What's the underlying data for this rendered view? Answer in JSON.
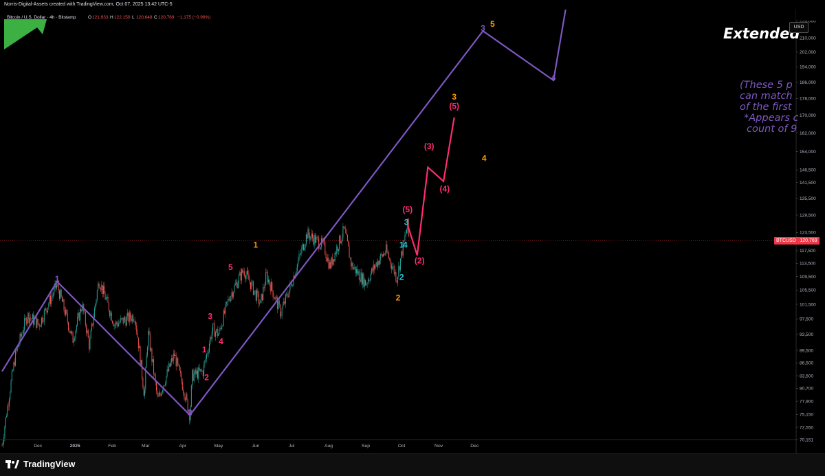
{
  "header": {
    "creator": "Norris-Digital-Assets created with TradingView.com, Oct 07, 2025 13:42 UTC-5",
    "symbol": "Bitcoin / U.S. Dollar · 4h · Bitstamp",
    "ohlc": {
      "o_label": "O",
      "o": "121,933",
      "h_label": "H",
      "h": "122,150",
      "l_label": "L",
      "l": "120,648",
      "c_label": "C",
      "c": "120,769",
      "change": "−1,175 (−0.96%)"
    }
  },
  "toolbar": {
    "currency_button": "USD"
  },
  "price_tag": {
    "symbol": "BTCUSD",
    "value": "120,769"
  },
  "annotation": {
    "title": "Extended",
    "note_lines": [
      "(These 5 p",
      "can match",
      "of the first",
      "*Appears c",
      "count of 9"
    ]
  },
  "footer": {
    "brand": "TradingView"
  },
  "colors": {
    "background": "#000000",
    "purple": "#7e57c2",
    "pink": "#ff2d6f",
    "orange": "#ff9800",
    "cyan": "#26c6da",
    "candle_up": "#26a69a",
    "candle_down": "#ef5350",
    "green_corner": "#3cb043"
  },
  "chart_data": {
    "type": "candlestick",
    "y_scale": "log",
    "ylim": [
      70151,
      226000
    ],
    "y_ticks": [
      "220,000",
      "210,000",
      "202,000",
      "194,000",
      "186,000",
      "178,000",
      "170,000",
      "162,000",
      "154,000",
      "146,500",
      "141,500",
      "135,500",
      "129,500",
      "123,500",
      "117,500",
      "113,500",
      "109,500",
      "105,500",
      "101,500",
      "97,500",
      "93,500",
      "89,500",
      "86,500",
      "83,500",
      "80,700",
      "77,900",
      "75,150",
      "72,550",
      "70,151"
    ],
    "x_ticks": [
      "Dec",
      "2025",
      "Feb",
      "Mar",
      "Apr",
      "May",
      "Jun",
      "Jul",
      "Aug",
      "Sep",
      "Oct",
      "Nov",
      "Dec"
    ],
    "current_price": 120769,
    "price_path": [
      {
        "date": "2024-11-01",
        "price": 69000
      },
      {
        "date": "2024-11-12",
        "price": 88000
      },
      {
        "date": "2024-11-22",
        "price": 98500
      },
      {
        "date": "2024-12-02",
        "price": 96000
      },
      {
        "date": "2024-12-17",
        "price": 107000
      },
      {
        "date": "2024-12-30",
        "price": 92000
      },
      {
        "date": "2025-01-07",
        "price": 101500
      },
      {
        "date": "2025-01-13",
        "price": 90500
      },
      {
        "date": "2025-01-21",
        "price": 108500
      },
      {
        "date": "2025-02-03",
        "price": 96000
      },
      {
        "date": "2025-02-20",
        "price": 98500
      },
      {
        "date": "2025-02-28",
        "price": 79000
      },
      {
        "date": "2025-03-03",
        "price": 94000
      },
      {
        "date": "2025-03-11",
        "price": 78000
      },
      {
        "date": "2025-03-25",
        "price": 88500
      },
      {
        "date": "2025-04-07",
        "price": 75000
      },
      {
        "date": "2025-04-09",
        "price": 83500
      },
      {
        "date": "2025-04-18",
        "price": 84500
      },
      {
        "date": "2025-04-26",
        "price": 95000
      },
      {
        "date": "2025-05-01",
        "price": 93500
      },
      {
        "date": "2025-05-10",
        "price": 103500
      },
      {
        "date": "2025-05-22",
        "price": 111500
      },
      {
        "date": "2025-06-05",
        "price": 101500
      },
      {
        "date": "2025-06-10",
        "price": 110000
      },
      {
        "date": "2025-06-22",
        "price": 99000
      },
      {
        "date": "2025-07-01",
        "price": 107500
      },
      {
        "date": "2025-07-14",
        "price": 123000
      },
      {
        "date": "2025-07-28",
        "price": 119000
      },
      {
        "date": "2025-08-02",
        "price": 112500
      },
      {
        "date": "2025-08-14",
        "price": 124500
      },
      {
        "date": "2025-08-20",
        "price": 113000
      },
      {
        "date": "2025-09-01",
        "price": 107500
      },
      {
        "date": "2025-09-10",
        "price": 113500
      },
      {
        "date": "2025-09-18",
        "price": 117500
      },
      {
        "date": "2025-09-27",
        "price": 109000
      },
      {
        "date": "2025-10-06",
        "price": 126000
      },
      {
        "date": "2025-10-07",
        "price": 120769
      }
    ],
    "series": [
      {
        "name": "Primary wave (purple)",
        "color": "#7e57c2",
        "points": [
          {
            "date": "2024-11-01",
            "price": 84500
          },
          {
            "date": "2024-12-17",
            "price": 108000
          },
          {
            "date": "2025-04-07",
            "price": 75000
          },
          {
            "date": "2025-12-08",
            "price": 214000
          },
          {
            "date": "2026-02-05",
            "price": 187000
          },
          {
            "date": "2026-02-18",
            "price": 240000
          }
        ],
        "labels": [
          {
            "text": "1",
            "date": "2024-12-17",
            "price": 108000
          },
          {
            "text": "2",
            "date": "2025-04-07",
            "price": 75000
          },
          {
            "text": "3",
            "date": "2025-12-08",
            "price": 214000
          },
          {
            "text": "4",
            "date": "2026-02-05",
            "price": 187000
          }
        ]
      },
      {
        "name": "Projection (pink)",
        "color": "#ff2d6f",
        "points": [
          {
            "date": "2025-10-06",
            "price": 126000
          },
          {
            "date": "2025-10-14",
            "price": 116000
          },
          {
            "date": "2025-10-23",
            "price": 147500
          },
          {
            "date": "2025-11-05",
            "price": 142000
          },
          {
            "date": "2025-11-14",
            "price": 169000
          }
        ],
        "labels": [
          {
            "text": "(5)",
            "date": "2025-10-06",
            "price": 130500
          },
          {
            "text": "(2)",
            "date": "2025-10-16",
            "price": 113500
          },
          {
            "text": "(3)",
            "date": "2025-10-24",
            "price": 155000
          },
          {
            "text": "(4)",
            "date": "2025-11-06",
            "price": 138000
          },
          {
            "text": "(5)",
            "date": "2025-11-14",
            "price": 173000
          }
        ]
      },
      {
        "name": "Subwaves (pink)",
        "color": "#ff2d6f",
        "labels": [
          {
            "text": "1",
            "date": "2025-04-19",
            "price": 89000
          },
          {
            "text": "2",
            "date": "2025-04-21",
            "price": 82500
          },
          {
            "text": "3",
            "date": "2025-04-24",
            "price": 97500
          },
          {
            "text": "4",
            "date": "2025-05-03",
            "price": 91000
          },
          {
            "text": "5",
            "date": "2025-05-11",
            "price": 111500
          }
        ]
      },
      {
        "name": "Intermediate (orange)",
        "color": "#ff9800",
        "labels": [
          {
            "text": "1",
            "date": "2025-06-01",
            "price": 118500
          },
          {
            "text": "2",
            "date": "2025-09-28",
            "price": 102500
          },
          {
            "text": "3",
            "date": "2025-11-14",
            "price": 177500
          },
          {
            "text": "4",
            "date": "2025-12-09",
            "price": 150000
          },
          {
            "text": "5",
            "date": "2025-12-16",
            "price": 216500
          }
        ]
      },
      {
        "name": "Minor (cyan)",
        "color": "#26c6da",
        "labels": [
          {
            "text": "3",
            "date": "2025-10-05",
            "price": 126000
          },
          {
            "text": "1",
            "date": "2025-10-01",
            "price": 118500
          },
          {
            "text": "4",
            "date": "2025-10-04",
            "price": 118500
          },
          {
            "text": "2",
            "date": "2025-10-01",
            "price": 108500
          }
        ]
      }
    ]
  }
}
